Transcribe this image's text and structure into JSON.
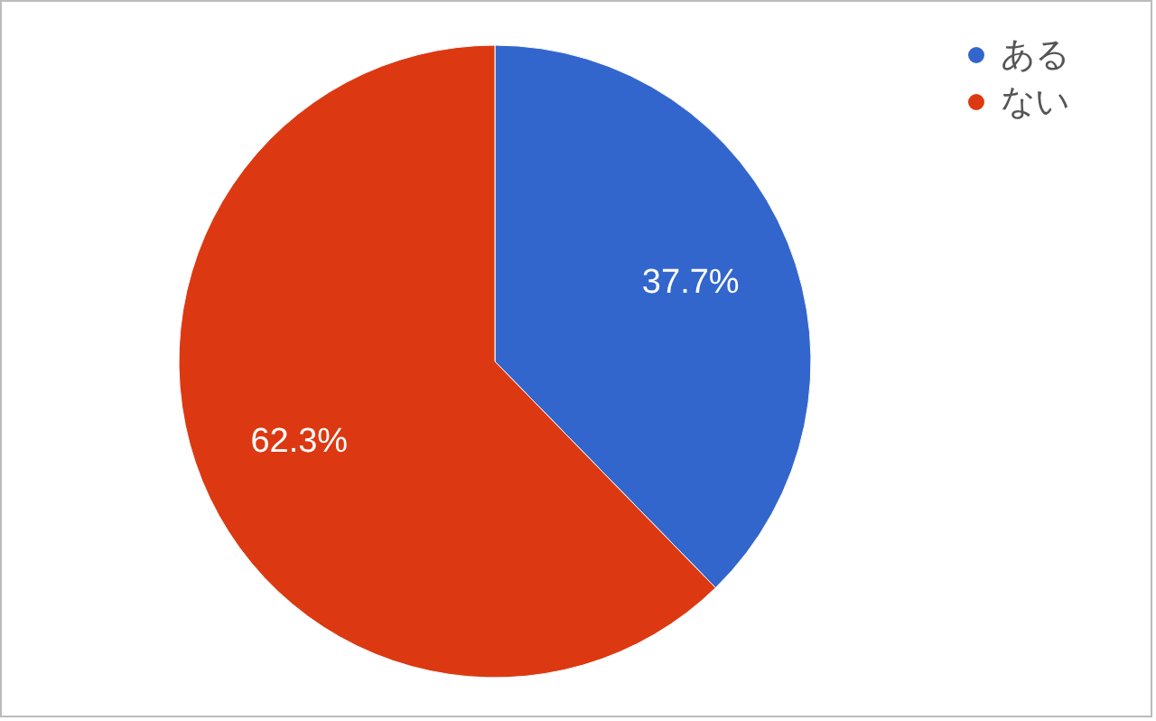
{
  "chart_data": {
    "type": "pie",
    "categories": [
      "ある",
      "ない"
    ],
    "values": [
      37.7,
      62.3
    ],
    "colors": [
      "#3366cc",
      "#dc3912"
    ],
    "value_labels": [
      "37.7%",
      "62.3%"
    ],
    "legend": "top right"
  }
}
